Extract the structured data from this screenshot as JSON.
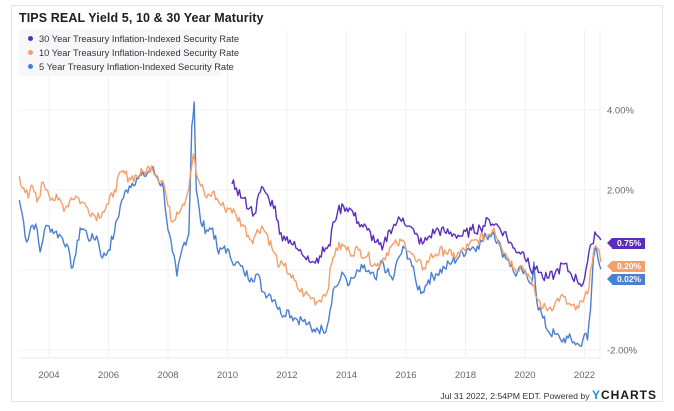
{
  "chart_data": {
    "type": "line",
    "title": "TIPS REAL Yield 5, 10 & 30 Year Maturity",
    "xlabel": "",
    "ylabel": "",
    "xlim": [
      2003.0,
      2022.6
    ],
    "ylim": [
      -2.5,
      5.0
    ],
    "x_ticks": [
      "2004",
      "2006",
      "2008",
      "2010",
      "2012",
      "2014",
      "2016",
      "2018",
      "2020",
      "2022"
    ],
    "x_tick_values": [
      2004,
      2006,
      2008,
      2010,
      2012,
      2014,
      2016,
      2018,
      2020,
      2022
    ],
    "y_ticks": [
      "4.00%",
      "2.00%",
      "-2.00%"
    ],
    "y_tick_values": [
      4,
      2,
      -2
    ],
    "grid": true,
    "legend_position": "top-left",
    "series": [
      {
        "name": "30 Year Treasury Inflation-Indexed Security Rate",
        "color": "#5b2dbd",
        "last_value_label": "0.75%",
        "last_value": 0.75,
        "points": [
          [
            2010.15,
            2.15
          ],
          [
            2010.3,
            2.05
          ],
          [
            2010.5,
            1.8
          ],
          [
            2010.75,
            1.55
          ],
          [
            2010.9,
            1.4
          ],
          [
            2011.1,
            1.95
          ],
          [
            2011.2,
            2.05
          ],
          [
            2011.4,
            1.75
          ],
          [
            2011.6,
            1.6
          ],
          [
            2011.75,
            0.9
          ],
          [
            2011.9,
            0.85
          ],
          [
            2012.1,
            0.75
          ],
          [
            2012.3,
            0.55
          ],
          [
            2012.5,
            0.4
          ],
          [
            2012.7,
            0.35
          ],
          [
            2012.9,
            0.2
          ],
          [
            2013.1,
            0.35
          ],
          [
            2013.3,
            0.55
          ],
          [
            2013.45,
            0.6
          ],
          [
            2013.55,
            1.2
          ],
          [
            2013.7,
            1.45
          ],
          [
            2013.9,
            1.6
          ],
          [
            2014.1,
            1.55
          ],
          [
            2014.4,
            1.2
          ],
          [
            2014.7,
            1.0
          ],
          [
            2015.0,
            0.7
          ],
          [
            2015.2,
            0.5
          ],
          [
            2015.45,
            1.0
          ],
          [
            2015.7,
            1.2
          ],
          [
            2015.9,
            1.3
          ],
          [
            2016.1,
            1.1
          ],
          [
            2016.3,
            0.9
          ],
          [
            2016.55,
            0.65
          ],
          [
            2016.8,
            0.85
          ],
          [
            2017.0,
            1.0
          ],
          [
            2017.3,
            0.95
          ],
          [
            2017.6,
            0.9
          ],
          [
            2017.9,
            0.85
          ],
          [
            2018.2,
            1.0
          ],
          [
            2018.5,
            1.05
          ],
          [
            2018.8,
            1.25
          ],
          [
            2019.0,
            1.15
          ],
          [
            2019.3,
            0.95
          ],
          [
            2019.6,
            0.55
          ],
          [
            2019.9,
            0.45
          ],
          [
            2020.1,
            0.3
          ],
          [
            2020.25,
            -0.1
          ],
          [
            2020.4,
            0.1
          ],
          [
            2020.6,
            -0.2
          ],
          [
            2020.8,
            -0.2
          ],
          [
            2021.0,
            -0.1
          ],
          [
            2021.3,
            0.15
          ],
          [
            2021.55,
            -0.1
          ],
          [
            2021.75,
            -0.25
          ],
          [
            2021.95,
            -0.35
          ],
          [
            2022.1,
            0.2
          ],
          [
            2022.25,
            0.65
          ],
          [
            2022.35,
            0.95
          ],
          [
            2022.45,
            0.85
          ],
          [
            2022.55,
            0.75
          ]
        ]
      },
      {
        "name": "10 Year Treasury Inflation-Indexed Security Rate",
        "color": "#f5a06a",
        "last_value_label": "0.20%",
        "last_value": 0.2,
        "points": [
          [
            2003.0,
            2.35
          ],
          [
            2003.15,
            2.05
          ],
          [
            2003.3,
            1.8
          ],
          [
            2003.45,
            2.1
          ],
          [
            2003.6,
            1.7
          ],
          [
            2003.8,
            2.2
          ],
          [
            2003.95,
            2.0
          ],
          [
            2004.1,
            1.8
          ],
          [
            2004.3,
            1.75
          ],
          [
            2004.55,
            1.55
          ],
          [
            2004.75,
            1.8
          ],
          [
            2004.9,
            1.85
          ],
          [
            2005.1,
            1.7
          ],
          [
            2005.3,
            1.55
          ],
          [
            2005.55,
            1.35
          ],
          [
            2005.8,
            1.45
          ],
          [
            2006.0,
            1.65
          ],
          [
            2006.2,
            2.0
          ],
          [
            2006.45,
            2.45
          ],
          [
            2006.7,
            2.3
          ],
          [
            2006.95,
            2.35
          ],
          [
            2007.2,
            2.45
          ],
          [
            2007.45,
            2.6
          ],
          [
            2007.65,
            2.35
          ],
          [
            2007.85,
            2.2
          ],
          [
            2008.0,
            1.6
          ],
          [
            2008.15,
            1.2
          ],
          [
            2008.3,
            1.45
          ],
          [
            2008.5,
            1.65
          ],
          [
            2008.65,
            1.9
          ],
          [
            2008.85,
            2.9
          ],
          [
            2008.95,
            2.4
          ],
          [
            2009.1,
            2.1
          ],
          [
            2009.3,
            1.8
          ],
          [
            2009.5,
            1.95
          ],
          [
            2009.7,
            1.7
          ],
          [
            2009.9,
            1.55
          ],
          [
            2010.1,
            1.55
          ],
          [
            2010.3,
            1.35
          ],
          [
            2010.55,
            1.1
          ],
          [
            2010.8,
            0.75
          ],
          [
            2010.95,
            0.9
          ],
          [
            2011.15,
            1.1
          ],
          [
            2011.35,
            0.85
          ],
          [
            2011.55,
            0.45
          ],
          [
            2011.75,
            0.1
          ],
          [
            2011.9,
            0.1
          ],
          [
            2012.1,
            -0.1
          ],
          [
            2012.35,
            -0.45
          ],
          [
            2012.6,
            -0.6
          ],
          [
            2012.85,
            -0.7
          ],
          [
            2013.0,
            -0.8
          ],
          [
            2013.2,
            -0.65
          ],
          [
            2013.35,
            -0.55
          ],
          [
            2013.5,
            0.15
          ],
          [
            2013.65,
            0.55
          ],
          [
            2013.9,
            0.6
          ],
          [
            2014.1,
            0.45
          ],
          [
            2014.4,
            0.5
          ],
          [
            2014.7,
            0.35
          ],
          [
            2015.0,
            0.1
          ],
          [
            2015.2,
            0.25
          ],
          [
            2015.45,
            0.55
          ],
          [
            2015.7,
            0.65
          ],
          [
            2015.95,
            0.7
          ],
          [
            2016.15,
            0.45
          ],
          [
            2016.35,
            0.2
          ],
          [
            2016.6,
            0.05
          ],
          [
            2016.8,
            0.3
          ],
          [
            2017.0,
            0.4
          ],
          [
            2017.3,
            0.5
          ],
          [
            2017.55,
            0.35
          ],
          [
            2017.8,
            0.4
          ],
          [
            2018.1,
            0.6
          ],
          [
            2018.4,
            0.75
          ],
          [
            2018.7,
            0.85
          ],
          [
            2018.95,
            1.05
          ],
          [
            2019.2,
            0.6
          ],
          [
            2019.45,
            0.3
          ],
          [
            2019.65,
            0.05
          ],
          [
            2019.9,
            0.1
          ],
          [
            2020.1,
            -0.1
          ],
          [
            2020.25,
            -0.4
          ],
          [
            2020.4,
            -0.7
          ],
          [
            2020.6,
            -0.95
          ],
          [
            2020.8,
            -0.95
          ],
          [
            2021.0,
            -0.85
          ],
          [
            2021.2,
            -0.65
          ],
          [
            2021.45,
            -0.85
          ],
          [
            2021.7,
            -1.0
          ],
          [
            2021.95,
            -0.8
          ],
          [
            2022.1,
            -0.6
          ],
          [
            2022.2,
            0.0
          ],
          [
            2022.32,
            0.55
          ],
          [
            2022.42,
            0.55
          ],
          [
            2022.55,
            0.2
          ]
        ]
      },
      {
        "name": "5 Year Treasury Inflation-Indexed Security Rate",
        "color": "#4a7fd4",
        "last_value_label": "0.02%",
        "last_value": 0.02,
        "points": [
          [
            2003.0,
            1.75
          ],
          [
            2003.1,
            1.4
          ],
          [
            2003.25,
            0.7
          ],
          [
            2003.4,
            1.1
          ],
          [
            2003.55,
            1.15
          ],
          [
            2003.7,
            0.45
          ],
          [
            2003.85,
            1.0
          ],
          [
            2004.0,
            1.1
          ],
          [
            2004.2,
            0.95
          ],
          [
            2004.4,
            0.85
          ],
          [
            2004.6,
            0.65
          ],
          [
            2004.75,
            0.05
          ],
          [
            2004.9,
            0.4
          ],
          [
            2005.05,
            1.05
          ],
          [
            2005.2,
            1.0
          ],
          [
            2005.4,
            0.75
          ],
          [
            2005.6,
            0.85
          ],
          [
            2005.8,
            0.3
          ],
          [
            2006.0,
            0.5
          ],
          [
            2006.2,
            0.95
          ],
          [
            2006.45,
            1.75
          ],
          [
            2006.7,
            2.1
          ],
          [
            2006.95,
            2.3
          ],
          [
            2007.2,
            2.35
          ],
          [
            2007.45,
            2.55
          ],
          [
            2007.65,
            2.3
          ],
          [
            2007.85,
            2.05
          ],
          [
            2008.0,
            1.0
          ],
          [
            2008.15,
            0.45
          ],
          [
            2008.3,
            -0.15
          ],
          [
            2008.5,
            0.6
          ],
          [
            2008.7,
            0.9
          ],
          [
            2008.8,
            3.6
          ],
          [
            2008.88,
            4.2
          ],
          [
            2008.95,
            2.0
          ],
          [
            2009.1,
            1.2
          ],
          [
            2009.3,
            1.0
          ],
          [
            2009.5,
            1.05
          ],
          [
            2009.7,
            0.4
          ],
          [
            2009.9,
            0.6
          ],
          [
            2010.1,
            0.3
          ],
          [
            2010.3,
            0.2
          ],
          [
            2010.55,
            -0.05
          ],
          [
            2010.8,
            -0.2
          ],
          [
            2011.0,
            -0.1
          ],
          [
            2011.2,
            -0.55
          ],
          [
            2011.4,
            -0.6
          ],
          [
            2011.6,
            -0.75
          ],
          [
            2011.8,
            -1.1
          ],
          [
            2012.0,
            -1.0
          ],
          [
            2012.25,
            -1.2
          ],
          [
            2012.5,
            -1.25
          ],
          [
            2012.7,
            -1.35
          ],
          [
            2012.85,
            -1.55
          ],
          [
            2013.0,
            -1.45
          ],
          [
            2013.2,
            -1.5
          ],
          [
            2013.35,
            -1.4
          ],
          [
            2013.55,
            -0.5
          ],
          [
            2013.75,
            -0.3
          ],
          [
            2013.9,
            -0.1
          ],
          [
            2014.1,
            -0.35
          ],
          [
            2014.3,
            -0.15
          ],
          [
            2014.55,
            0.05
          ],
          [
            2014.8,
            -0.1
          ],
          [
            2015.0,
            -0.25
          ],
          [
            2015.2,
            0.25
          ],
          [
            2015.35,
            -0.05
          ],
          [
            2015.55,
            -0.25
          ],
          [
            2015.75,
            0.3
          ],
          [
            2015.95,
            0.55
          ],
          [
            2016.15,
            0.25
          ],
          [
            2016.35,
            -0.35
          ],
          [
            2016.55,
            -0.55
          ],
          [
            2016.75,
            -0.25
          ],
          [
            2017.0,
            -0.1
          ],
          [
            2017.3,
            0.05
          ],
          [
            2017.55,
            0.2
          ],
          [
            2017.8,
            0.35
          ],
          [
            2018.1,
            0.55
          ],
          [
            2018.4,
            0.6
          ],
          [
            2018.7,
            0.85
          ],
          [
            2018.95,
            0.95
          ],
          [
            2019.2,
            0.5
          ],
          [
            2019.45,
            0.25
          ],
          [
            2019.65,
            -0.1
          ],
          [
            2019.9,
            0.0
          ],
          [
            2020.1,
            -0.25
          ],
          [
            2020.22,
            -0.35
          ],
          [
            2020.3,
            0.2
          ],
          [
            2020.4,
            -0.8
          ],
          [
            2020.6,
            -1.2
          ],
          [
            2020.8,
            -1.55
          ],
          [
            2021.0,
            -1.6
          ],
          [
            2021.2,
            -1.75
          ],
          [
            2021.45,
            -1.7
          ],
          [
            2021.65,
            -1.8
          ],
          [
            2021.85,
            -1.9
          ],
          [
            2022.0,
            -1.6
          ],
          [
            2022.1,
            -1.75
          ],
          [
            2022.2,
            -1.0
          ],
          [
            2022.3,
            0.3
          ],
          [
            2022.38,
            0.6
          ],
          [
            2022.45,
            0.3
          ],
          [
            2022.55,
            0.02
          ]
        ]
      }
    ]
  },
  "footer": {
    "timestamp": "Jul 31 2022, 2:54PM EDT. Powered by",
    "brand_y": "Y",
    "brand_rest": "CHARTS"
  }
}
